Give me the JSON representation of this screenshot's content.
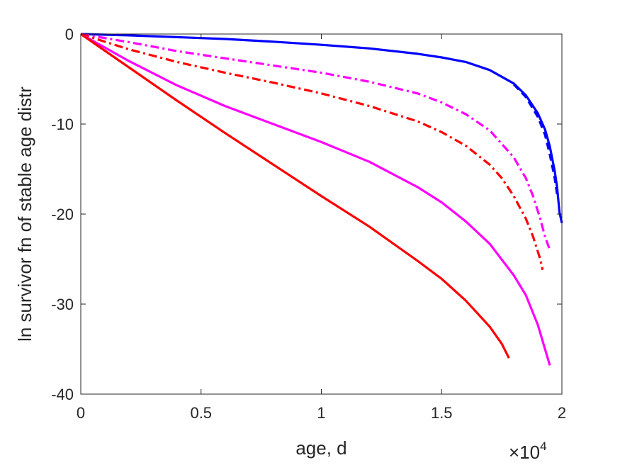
{
  "chart_data": {
    "type": "line",
    "title": "",
    "xlabel": "age, d",
    "ylabel": "ln survivor fn of stable age distr",
    "x_exponent_label": "×10",
    "x_exponent_power": "4",
    "xlim": [
      0,
      2
    ],
    "ylim": [
      -40,
      0
    ],
    "xticks": [
      0,
      0.5,
      1,
      1.5,
      2
    ],
    "xtick_labels": [
      "0",
      "0.5",
      "1",
      "1.5",
      "2"
    ],
    "yticks": [
      0,
      -10,
      -20,
      -30,
      -40
    ],
    "ytick_labels": [
      "0",
      "-10",
      "-20",
      "-30",
      "-40"
    ],
    "grid": false,
    "series": [
      {
        "color": "#0000ff",
        "dash": "solid",
        "x": [
          0,
          0.2,
          0.4,
          0.6,
          0.8,
          1.0,
          1.2,
          1.4,
          1.5,
          1.6,
          1.7,
          1.8,
          1.85,
          1.9,
          1.93,
          1.95,
          1.97,
          1.98,
          1.99,
          2.0
        ],
        "y": [
          0,
          -0.15,
          -0.35,
          -0.55,
          -0.85,
          -1.2,
          -1.6,
          -2.2,
          -2.6,
          -3.1,
          -4.0,
          -5.5,
          -6.8,
          -8.8,
          -10.6,
          -12.5,
          -15.2,
          -17.0,
          -19.8,
          -21.0
        ]
      },
      {
        "color": "#0000ff",
        "dash": "dash",
        "x": [
          1.8,
          1.85,
          1.9,
          1.93,
          1.95,
          1.97,
          1.98
        ],
        "y": [
          -5.6,
          -7.0,
          -9.2,
          -11.2,
          -13.4,
          -16.0,
          -17.8
        ]
      },
      {
        "color": "#ff00ff",
        "dash": "dashdot",
        "x": [
          0,
          0.2,
          0.4,
          0.6,
          0.8,
          1.0,
          1.2,
          1.4,
          1.5,
          1.6,
          1.7,
          1.8,
          1.85,
          1.88,
          1.91,
          1.93,
          1.95
        ],
        "y": [
          0,
          -0.9,
          -1.9,
          -2.7,
          -3.5,
          -4.3,
          -5.3,
          -6.6,
          -7.6,
          -8.9,
          -10.7,
          -13.7,
          -16.0,
          -18.0,
          -20.5,
          -22.5,
          -24.0
        ]
      },
      {
        "color": "#ff0000",
        "dash": "dashdot",
        "x": [
          0,
          0.2,
          0.4,
          0.6,
          0.8,
          1.0,
          1.2,
          1.4,
          1.5,
          1.6,
          1.7,
          1.75,
          1.8,
          1.85,
          1.88,
          1.91,
          1.92
        ],
        "y": [
          0,
          -1.7,
          -3.1,
          -4.3,
          -5.4,
          -6.6,
          -8.0,
          -9.7,
          -10.9,
          -12.4,
          -14.5,
          -16.0,
          -18.0,
          -20.5,
          -22.5,
          -25.0,
          -26.2
        ]
      },
      {
        "color": "#ff00ff",
        "dash": "solid",
        "x": [
          0,
          0.2,
          0.4,
          0.6,
          0.8,
          1.0,
          1.2,
          1.4,
          1.5,
          1.6,
          1.7,
          1.8,
          1.85,
          1.9,
          1.93,
          1.95
        ],
        "y": [
          0,
          -3.0,
          -5.7,
          -8.0,
          -10.0,
          -12.0,
          -14.2,
          -17.0,
          -18.7,
          -20.8,
          -23.3,
          -26.8,
          -29.0,
          -32.3,
          -35.0,
          -36.8
        ]
      },
      {
        "color": "#ff0000",
        "dash": "solid",
        "x": [
          0,
          0.2,
          0.4,
          0.6,
          0.8,
          1.0,
          1.2,
          1.4,
          1.5,
          1.6,
          1.7,
          1.75,
          1.78
        ],
        "y": [
          0,
          -3.7,
          -7.4,
          -11.0,
          -14.5,
          -18.0,
          -21.4,
          -25.2,
          -27.2,
          -29.6,
          -32.5,
          -34.4,
          -36.0
        ]
      }
    ]
  }
}
